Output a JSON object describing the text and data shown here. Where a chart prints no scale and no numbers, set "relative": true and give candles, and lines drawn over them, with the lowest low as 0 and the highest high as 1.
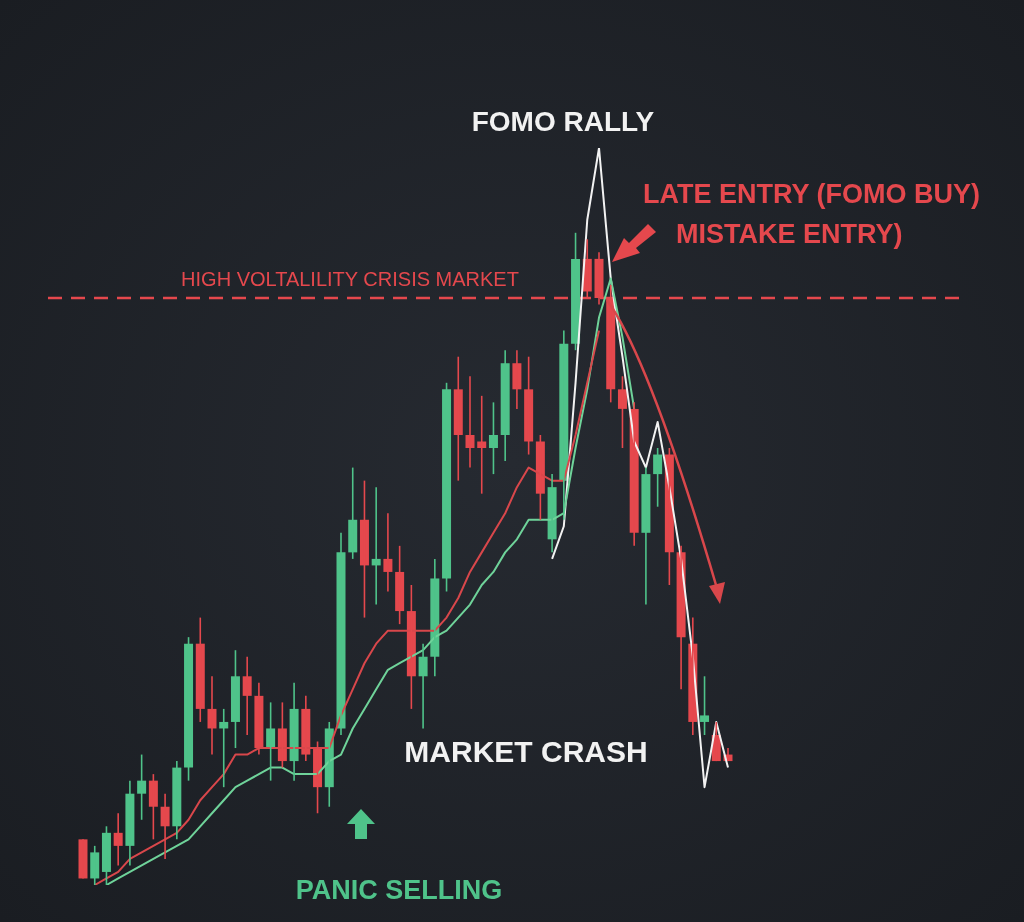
{
  "chart_data": {
    "type": "candlestick",
    "relative": true,
    "categories": [
      null,
      null,
      null,
      null,
      null,
      null,
      null,
      null,
      null,
      null,
      null,
      null,
      null,
      null,
      null,
      null,
      null,
      null,
      null,
      null,
      null,
      null,
      null,
      null,
      null,
      null,
      null,
      null,
      null,
      null,
      null,
      null,
      null,
      null,
      null,
      null,
      null,
      null,
      null,
      null,
      null,
      null,
      null,
      null,
      null,
      null,
      null,
      null,
      null,
      null,
      null,
      null,
      null,
      null,
      null,
      null
    ],
    "ohlc": [
      [
        0.07,
        0.07,
        0.01,
        0.01
      ],
      [
        0.01,
        0.06,
        0,
        0.05
      ],
      [
        0.02,
        0.09,
        0.0,
        0.08
      ],
      [
        0.08,
        0.11,
        0.03,
        0.06
      ],
      [
        0.06,
        0.16,
        0.03,
        0.14
      ],
      [
        0.14,
        0.2,
        0.1,
        0.16
      ],
      [
        0.16,
        0.17,
        0.07,
        0.12
      ],
      [
        0.12,
        0.14,
        0.04,
        0.09
      ],
      [
        0.09,
        0.19,
        0.07,
        0.18
      ],
      [
        0.18,
        0.38,
        0.16,
        0.37
      ],
      [
        0.37,
        0.41,
        0.25,
        0.27
      ],
      [
        0.27,
        0.32,
        0.2,
        0.24
      ],
      [
        0.24,
        0.27,
        0.15,
        0.25
      ],
      [
        0.25,
        0.36,
        0.21,
        0.32
      ],
      [
        0.32,
        0.35,
        0.23,
        0.29
      ],
      [
        0.29,
        0.31,
        0.2,
        0.21
      ],
      [
        0.21,
        0.28,
        0.16,
        0.24
      ],
      [
        0.24,
        0.28,
        0.18,
        0.19
      ],
      [
        0.19,
        0.31,
        0.16,
        0.27
      ],
      [
        0.27,
        0.29,
        0.19,
        0.2
      ],
      [
        0.21,
        0.22,
        0.11,
        0.15
      ],
      [
        0.15,
        0.25,
        0.12,
        0.24
      ],
      [
        0.24,
        0.54,
        0.23,
        0.51
      ],
      [
        0.51,
        0.64,
        0.5,
        0.56
      ],
      [
        0.56,
        0.62,
        0.41,
        0.49
      ],
      [
        0.49,
        0.61,
        0.43,
        0.5
      ],
      [
        0.5,
        0.57,
        0.45,
        0.48
      ],
      [
        0.48,
        0.52,
        0.4,
        0.42
      ],
      [
        0.42,
        0.46,
        0.27,
        0.32
      ],
      [
        0.32,
        0.37,
        0.24,
        0.35
      ],
      [
        0.35,
        0.5,
        0.32,
        0.47
      ],
      [
        0.47,
        0.77,
        0.45,
        0.76
      ],
      [
        0.76,
        0.81,
        0.62,
        0.69
      ],
      [
        0.69,
        0.78,
        0.64,
        0.67
      ],
      [
        0.68,
        0.75,
        0.6,
        0.67
      ],
      [
        0.67,
        0.74,
        0.63,
        0.69
      ],
      [
        0.69,
        0.82,
        0.65,
        0.8
      ],
      [
        0.8,
        0.82,
        0.73,
        0.76
      ],
      [
        0.76,
        0.81,
        0.66,
        0.68
      ],
      [
        0.68,
        0.69,
        0.56,
        0.6
      ],
      [
        0.53,
        0.63,
        0.51,
        0.61
      ],
      [
        0.62,
        0.85,
        0.56,
        0.83
      ],
      [
        0.83,
        1,
        0.82,
        0.96
      ],
      [
        0.96,
        0.99,
        0.9,
        0.91
      ],
      [
        0.96,
        0.97,
        0.89,
        0.9
      ],
      [
        0.9,
        0.92,
        0.74,
        0.76
      ],
      [
        0.76,
        0.78,
        0.67,
        0.73
      ],
      [
        0.73,
        0.74,
        0.52,
        0.54
      ],
      [
        0.54,
        0.64,
        0.43,
        0.63
      ],
      [
        0.63,
        0.67,
        0.58,
        0.66
      ],
      [
        0.66,
        0.67,
        0.46,
        0.51
      ],
      [
        0.51,
        0.52,
        0.3,
        0.38
      ],
      [
        0.37,
        0.41,
        0.23,
        0.25
      ],
      [
        0.25,
        0.32,
        0.23,
        0.26
      ],
      [
        0.23,
        0.25,
        0.19,
        0.19
      ],
      [
        0.2,
        0.21,
        0.19,
        0.19
      ]
    ],
    "colors": [
      "#e5484d",
      "#4fc38a",
      "#4fc38a",
      "#e5484d",
      "#4fc38a",
      "#4fc38a",
      "#e5484d",
      "#e5484d",
      "#4fc38a",
      "#4fc38a",
      "#e5484d",
      "#e5484d",
      "#4fc38a",
      "#4fc38a",
      "#e5484d",
      "#e5484d",
      "#4fc38a",
      "#e5484d",
      "#4fc38a",
      "#e5484d",
      "#e5484d",
      "#4fc38a",
      "#4fc38a",
      "#4fc38a",
      "#e5484d",
      "#4fc38a",
      "#e5484d",
      "#e5484d",
      "#e5484d",
      "#4fc38a",
      "#4fc38a",
      "#4fc38a",
      "#e5484d",
      "#e5484d",
      "#e5484d",
      "#4fc38a",
      "#4fc38a",
      "#e5484d",
      "#e5484d",
      "#e5484d",
      "#4fc38a",
      "#4fc38a",
      "#4fc38a",
      "#e5484d",
      "#e5484d",
      "#e5484d",
      "#e5484d",
      "#e5484d",
      "#4fc38a",
      "#4fc38a",
      "#e5484d",
      "#e5484d",
      "#e5484d",
      "#4fc38a",
      "#e5484d",
      "#e5484d"
    ],
    "series": [
      {
        "type": "line",
        "color": "#d9474b",
        "values": [
          null,
          0,
          0.01,
          0.02,
          0.04,
          0.05,
          0.06,
          0.07,
          0.08,
          0.1,
          0.13,
          0.15,
          0.17,
          0.2,
          0.2,
          0.21,
          0.21,
          0.21,
          0.21,
          0.21,
          0.21,
          0.21,
          0.26,
          0.3,
          0.34,
          0.37,
          0.39,
          0.39,
          0.39,
          0.39,
          0.39,
          0.41,
          0.44,
          0.48,
          0.51,
          0.54,
          0.57,
          0.61,
          0.64,
          0.63,
          0.62,
          0.62,
          0.69,
          0.77,
          0.85,
          null,
          null,
          null,
          null,
          null,
          null,
          null,
          null,
          null,
          null,
          null
        ]
      },
      {
        "type": "line",
        "color": "#6fd39a",
        "values": [
          null,
          null,
          0.0,
          0.01,
          0.02,
          0.03,
          0.04,
          0.05,
          0.06,
          0.07,
          0.09,
          0.11,
          0.13,
          0.15,
          0.16,
          0.17,
          0.18,
          0.18,
          0.17,
          0.17,
          0.17,
          0.19,
          0.2,
          0.24,
          0.27,
          0.3,
          0.33,
          0.34,
          0.35,
          0.36,
          0.38,
          0.39,
          0.41,
          0.43,
          0.46,
          0.48,
          0.51,
          0.53,
          0.56,
          0.56,
          0.56,
          0.57,
          0.67,
          0.76,
          0.87,
          0.93,
          0.84,
          0.73,
          null,
          null,
          null,
          null,
          null,
          null,
          null,
          null
        ]
      },
      {
        "type": "line",
        "color": "#f2f2f2",
        "values": [
          null,
          null,
          null,
          null,
          null,
          null,
          null,
          null,
          null,
          null,
          null,
          null,
          null,
          null,
          null,
          null,
          null,
          null,
          null,
          null,
          null,
          null,
          null,
          null,
          null,
          null,
          null,
          null,
          null,
          null,
          null,
          null,
          null,
          null,
          null,
          null,
          null,
          null,
          null,
          null,
          0.5,
          0.55,
          0.77,
          1.02,
          1.13,
          0.93,
          0.81,
          0.68,
          0.64,
          0.71,
          0.61,
          0.5,
          0.35,
          0.15,
          0.25,
          0.18
        ]
      }
    ],
    "marker": "none",
    "ref_lines": [
      {
        "axis": "y",
        "value": 0.9,
        "label": "HIGH VOLTALILITY CRISIS MARKET",
        "color": "#e5484d",
        "line_style": "dashed"
      }
    ],
    "annotations": [
      "FOMO RALLY",
      "LATE ENTRY (FOMO BUY)",
      "MISTAKE ENTRY)",
      "MARKET CRASH",
      "PANIC SELLING"
    ]
  }
}
